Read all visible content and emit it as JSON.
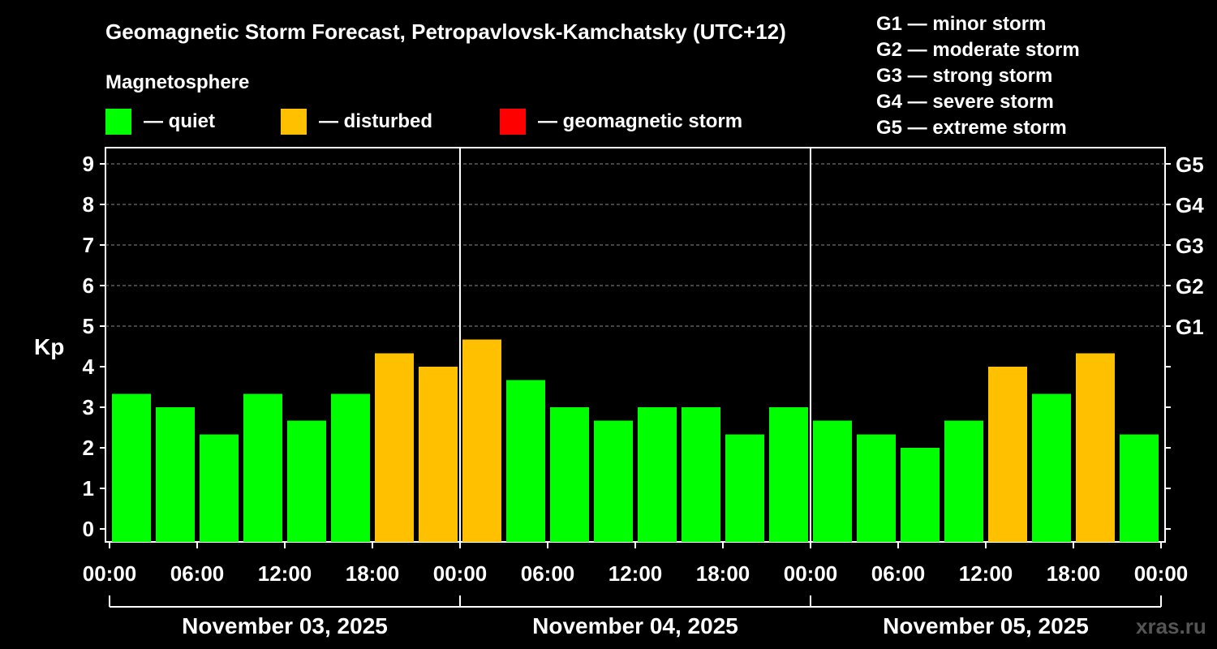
{
  "chart_data": {
    "type": "bar",
    "title": "Geomagnetic Storm Forecast, Petropavlovsk-Kamchatsky (UTC+12)",
    "ylabel": "Kp",
    "ylim": [
      0,
      9
    ],
    "yticks": [
      "0",
      "1",
      "2",
      "3",
      "4",
      "5",
      "6",
      "7",
      "8",
      "9"
    ],
    "storm_levels": [
      {
        "label": "G1",
        "kp": 5
      },
      {
        "label": "G2",
        "kp": 6
      },
      {
        "label": "G3",
        "kp": 7
      },
      {
        "label": "G4",
        "kp": 8
      },
      {
        "label": "G5",
        "kp": 9
      }
    ],
    "storm_legend": [
      "G1 — minor storm",
      "G2 — moderate storm",
      "G3 — strong storm",
      "G4 — severe storm",
      "G5 — extreme storm"
    ],
    "legend_title": "Magnetosphere",
    "legend": [
      {
        "label": "— quiet",
        "color": "#00ff00"
      },
      {
        "label": "— disturbed",
        "color": "#ffc000"
      },
      {
        "label": "— geomagnetic storm",
        "color": "#ff0000"
      }
    ],
    "colors": {
      "quiet": "#00ff00",
      "disturbed": "#ffc000",
      "storm": "#ff0000"
    },
    "xticks": [
      "00:00",
      "06:00",
      "12:00",
      "18:00",
      "00:00",
      "06:00",
      "12:00",
      "18:00",
      "00:00",
      "06:00",
      "12:00",
      "18:00",
      "00:00"
    ],
    "days": [
      "November 03, 2025",
      "November 04, 2025",
      "November 05, 2025"
    ],
    "values": [
      3.33,
      3.0,
      2.33,
      3.33,
      2.67,
      3.33,
      4.33,
      4.0,
      4.67,
      3.67,
      3.0,
      2.67,
      3.0,
      3.0,
      2.33,
      3.0,
      2.67,
      2.33,
      2.0,
      2.67,
      4.0,
      3.33,
      4.33,
      2.33
    ],
    "status": [
      "quiet",
      "quiet",
      "quiet",
      "quiet",
      "quiet",
      "quiet",
      "disturbed",
      "disturbed",
      "disturbed",
      "quiet",
      "quiet",
      "quiet",
      "quiet",
      "quiet",
      "quiet",
      "quiet",
      "quiet",
      "quiet",
      "quiet",
      "quiet",
      "disturbed",
      "quiet",
      "disturbed",
      "quiet"
    ],
    "watermark": "xras.ru"
  }
}
